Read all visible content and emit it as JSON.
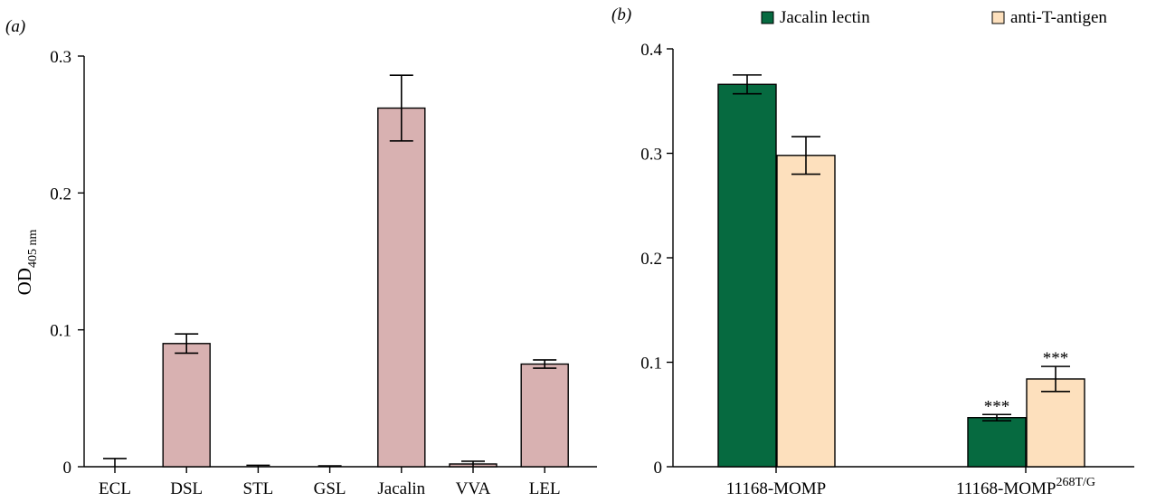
{
  "chart_data": [
    {
      "panel_label": "(a)",
      "type": "bar",
      "ylabel_main": "OD",
      "ylabel_sub": "405 nm",
      "xlabel": "",
      "ylim": [
        0,
        0.3
      ],
      "yticks": [
        {
          "value": 0,
          "label": "0"
        },
        {
          "value": 0.1,
          "label": "0.1"
        },
        {
          "value": 0.2,
          "label": "0.2"
        },
        {
          "value": 0.3,
          "label": "0.3"
        }
      ],
      "categories": [
        "ECL",
        "DSL",
        "STL",
        "GSL",
        "Jacalin",
        "VVA",
        "LEL"
      ],
      "values": [
        0.0,
        0.09,
        0.0,
        0.0,
        0.262,
        0.002,
        0.075
      ],
      "errors": [
        0.006,
        0.007,
        0.001,
        0.0,
        0.024,
        0.002,
        0.003
      ],
      "bar_color": "#d8b1b1"
    },
    {
      "panel_label": "(b)",
      "type": "bar",
      "ylabel": "",
      "xlabel": "",
      "ylim": [
        0,
        0.4
      ],
      "yticks": [
        {
          "value": 0,
          "label": "0"
        },
        {
          "value": 0.1,
          "label": "0.1"
        },
        {
          "value": 0.2,
          "label": "0.2"
        },
        {
          "value": 0.3,
          "label": "0.3"
        },
        {
          "value": 0.4,
          "label": "0.4"
        }
      ],
      "categories": [
        {
          "main": "11168-MOMP",
          "sup": ""
        },
        {
          "main": "11168-MOMP",
          "sup": "268T/G"
        }
      ],
      "legend_position": "top",
      "series": [
        {
          "name": "Jacalin lectin",
          "color": "#066a40",
          "values": [
            0.366,
            0.047
          ],
          "errors": [
            0.009,
            0.003
          ],
          "annotations": [
            "",
            "***"
          ]
        },
        {
          "name": "anti-T-antigen",
          "color": "#fde0bd",
          "values": [
            0.298,
            0.084
          ],
          "errors": [
            0.018,
            0.012
          ],
          "annotations": [
            "",
            "***"
          ]
        }
      ]
    }
  ]
}
